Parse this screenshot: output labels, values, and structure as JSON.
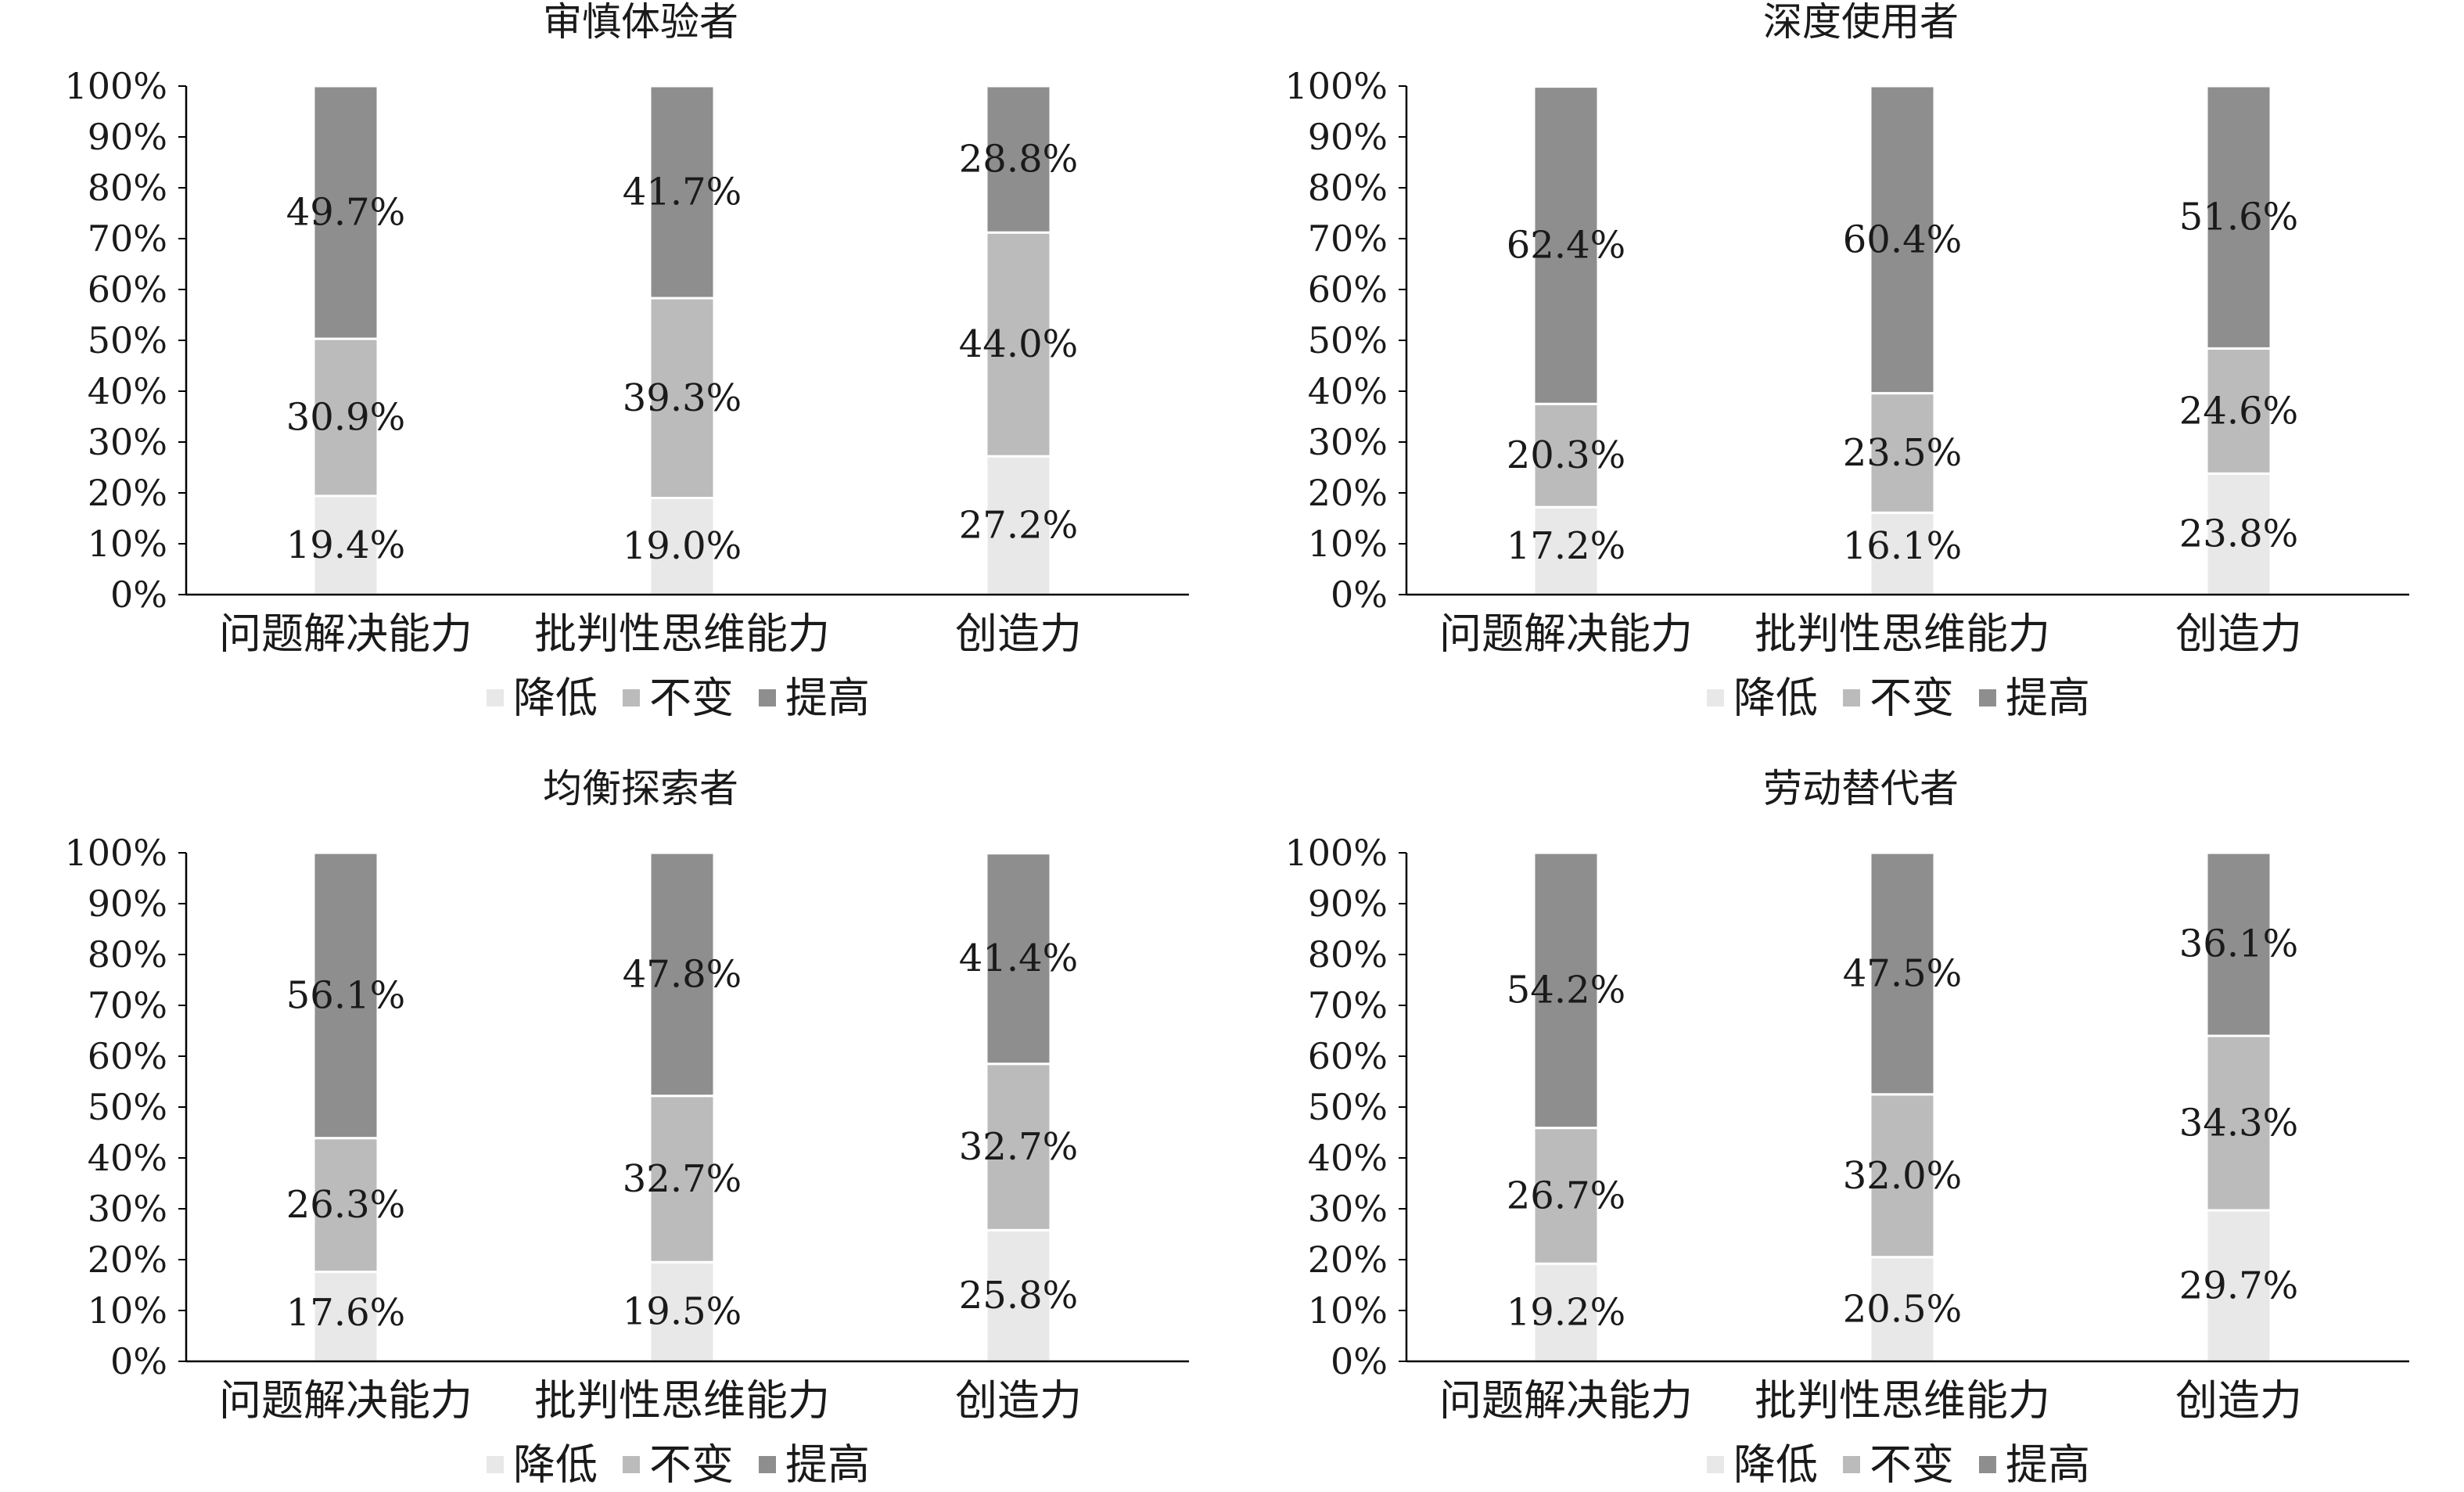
{
  "colors": {
    "降低": "#e8e8e8",
    "不变": "#bbbbbb",
    "提高": "#8f8e8e",
    "axis": "#000000",
    "text": "#1a1a1a"
  },
  "chart_data": [
    {
      "type": "bar",
      "stacked": true,
      "percent": true,
      "title": "审慎体验者",
      "categories": [
        "问题解决能力",
        "批判性思维能力",
        "创造力"
      ],
      "ylim": [
        0,
        100
      ],
      "yticks": [
        "0%",
        "10%",
        "20%",
        "30%",
        "40%",
        "50%",
        "60%",
        "70%",
        "80%",
        "90%",
        "100%"
      ],
      "legend": "bottom",
      "series": [
        {
          "name": "降低",
          "values": [
            19.4,
            19.0,
            27.2
          ],
          "labels": [
            "19.4%",
            "19.0%",
            "27.2%"
          ]
        },
        {
          "name": "不变",
          "values": [
            30.9,
            39.3,
            44.0
          ],
          "labels": [
            "30.9%",
            "39.3%",
            "44.0%"
          ]
        },
        {
          "name": "提高",
          "values": [
            49.7,
            41.7,
            28.8
          ],
          "labels": [
            "49.7%",
            "41.7%",
            "28.8%"
          ]
        }
      ]
    },
    {
      "type": "bar",
      "stacked": true,
      "percent": true,
      "title": "深度使用者",
      "categories": [
        "问题解决能力",
        "批判性思维能力",
        "创造力"
      ],
      "ylim": [
        0,
        100
      ],
      "yticks": [
        "0%",
        "10%",
        "20%",
        "30%",
        "40%",
        "50%",
        "60%",
        "70%",
        "80%",
        "90%",
        "100%"
      ],
      "legend": "bottom",
      "series": [
        {
          "name": "降低",
          "values": [
            17.2,
            16.1,
            23.8
          ],
          "labels": [
            "17.2%",
            "16.1%",
            "23.8%"
          ]
        },
        {
          "name": "不变",
          "values": [
            20.3,
            23.5,
            24.6
          ],
          "labels": [
            "20.3%",
            "23.5%",
            "24.6%"
          ]
        },
        {
          "name": "提高",
          "values": [
            62.4,
            60.4,
            51.6
          ],
          "labels": [
            "62.4%",
            "60.4%",
            "51.6%"
          ]
        }
      ]
    },
    {
      "type": "bar",
      "stacked": true,
      "percent": true,
      "title": "均衡探索者",
      "categories": [
        "问题解决能力",
        "批判性思维能力",
        "创造力"
      ],
      "ylim": [
        0,
        100
      ],
      "yticks": [
        "0%",
        "10%",
        "20%",
        "30%",
        "40%",
        "50%",
        "60%",
        "70%",
        "80%",
        "90%",
        "100%"
      ],
      "legend": "bottom",
      "series": [
        {
          "name": "降低",
          "values": [
            17.6,
            19.5,
            25.8
          ],
          "labels": [
            "17.6%",
            "19.5%",
            "25.8%"
          ]
        },
        {
          "name": "不变",
          "values": [
            26.3,
            32.7,
            32.7
          ],
          "labels": [
            "26.3%",
            "32.7%",
            "32.7%"
          ]
        },
        {
          "name": "提高",
          "values": [
            56.1,
            47.8,
            41.4
          ],
          "labels": [
            "56.1%",
            "47.8%",
            "41.4%"
          ]
        }
      ]
    },
    {
      "type": "bar",
      "stacked": true,
      "percent": true,
      "title": "劳动替代者",
      "categories": [
        "问题解决能力",
        "批判性思维能力",
        "创造力"
      ],
      "ylim": [
        0,
        100
      ],
      "yticks": [
        "0%",
        "10%",
        "20%",
        "30%",
        "40%",
        "50%",
        "60%",
        "70%",
        "80%",
        "90%",
        "100%"
      ],
      "legend": "bottom",
      "series": [
        {
          "name": "降低",
          "values": [
            19.2,
            20.5,
            29.7
          ],
          "labels": [
            "19.2%",
            "20.5%",
            "29.7%"
          ]
        },
        {
          "name": "不变",
          "values": [
            26.7,
            32.0,
            34.3
          ],
          "labels": [
            "26.7%",
            "32.0%",
            "34.3%"
          ]
        },
        {
          "name": "提高",
          "values": [
            54.2,
            47.5,
            36.1
          ],
          "labels": [
            "54.2%",
            "47.5%",
            "36.1%"
          ]
        }
      ]
    }
  ]
}
